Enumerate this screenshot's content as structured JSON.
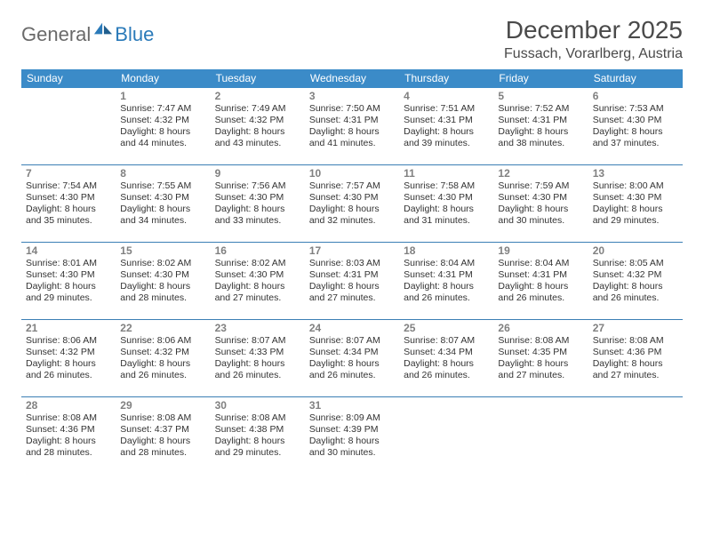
{
  "brand": {
    "part1": "General",
    "part2": "Blue"
  },
  "title": "December 2025",
  "location": "Fussach, Vorarlberg, Austria",
  "colors": {
    "header_bg": "#3b8bc8",
    "header_text": "#ffffff",
    "row_border": "#3b7fb5",
    "date_num": "#808080",
    "body_text": "#333333",
    "logo_gray": "#6a6a6a",
    "logo_blue": "#2a7ab9",
    "page_bg": "#ffffff"
  },
  "typography": {
    "title_fontsize": 28,
    "location_fontsize": 16,
    "dayhead_fontsize": 12,
    "datenum_fontsize": 12,
    "info_fontsize": 10.5
  },
  "day_headers": [
    "Sunday",
    "Monday",
    "Tuesday",
    "Wednesday",
    "Thursday",
    "Friday",
    "Saturday"
  ],
  "weeks": [
    [
      null,
      {
        "date": "1",
        "sunrise": "Sunrise: 7:47 AM",
        "sunset": "Sunset: 4:32 PM",
        "daylight": "Daylight: 8 hours and 44 minutes."
      },
      {
        "date": "2",
        "sunrise": "Sunrise: 7:49 AM",
        "sunset": "Sunset: 4:32 PM",
        "daylight": "Daylight: 8 hours and 43 minutes."
      },
      {
        "date": "3",
        "sunrise": "Sunrise: 7:50 AM",
        "sunset": "Sunset: 4:31 PM",
        "daylight": "Daylight: 8 hours and 41 minutes."
      },
      {
        "date": "4",
        "sunrise": "Sunrise: 7:51 AM",
        "sunset": "Sunset: 4:31 PM",
        "daylight": "Daylight: 8 hours and 39 minutes."
      },
      {
        "date": "5",
        "sunrise": "Sunrise: 7:52 AM",
        "sunset": "Sunset: 4:31 PM",
        "daylight": "Daylight: 8 hours and 38 minutes."
      },
      {
        "date": "6",
        "sunrise": "Sunrise: 7:53 AM",
        "sunset": "Sunset: 4:30 PM",
        "daylight": "Daylight: 8 hours and 37 minutes."
      }
    ],
    [
      {
        "date": "7",
        "sunrise": "Sunrise: 7:54 AM",
        "sunset": "Sunset: 4:30 PM",
        "daylight": "Daylight: 8 hours and 35 minutes."
      },
      {
        "date": "8",
        "sunrise": "Sunrise: 7:55 AM",
        "sunset": "Sunset: 4:30 PM",
        "daylight": "Daylight: 8 hours and 34 minutes."
      },
      {
        "date": "9",
        "sunrise": "Sunrise: 7:56 AM",
        "sunset": "Sunset: 4:30 PM",
        "daylight": "Daylight: 8 hours and 33 minutes."
      },
      {
        "date": "10",
        "sunrise": "Sunrise: 7:57 AM",
        "sunset": "Sunset: 4:30 PM",
        "daylight": "Daylight: 8 hours and 32 minutes."
      },
      {
        "date": "11",
        "sunrise": "Sunrise: 7:58 AM",
        "sunset": "Sunset: 4:30 PM",
        "daylight": "Daylight: 8 hours and 31 minutes."
      },
      {
        "date": "12",
        "sunrise": "Sunrise: 7:59 AM",
        "sunset": "Sunset: 4:30 PM",
        "daylight": "Daylight: 8 hours and 30 minutes."
      },
      {
        "date": "13",
        "sunrise": "Sunrise: 8:00 AM",
        "sunset": "Sunset: 4:30 PM",
        "daylight": "Daylight: 8 hours and 29 minutes."
      }
    ],
    [
      {
        "date": "14",
        "sunrise": "Sunrise: 8:01 AM",
        "sunset": "Sunset: 4:30 PM",
        "daylight": "Daylight: 8 hours and 29 minutes."
      },
      {
        "date": "15",
        "sunrise": "Sunrise: 8:02 AM",
        "sunset": "Sunset: 4:30 PM",
        "daylight": "Daylight: 8 hours and 28 minutes."
      },
      {
        "date": "16",
        "sunrise": "Sunrise: 8:02 AM",
        "sunset": "Sunset: 4:30 PM",
        "daylight": "Daylight: 8 hours and 27 minutes."
      },
      {
        "date": "17",
        "sunrise": "Sunrise: 8:03 AM",
        "sunset": "Sunset: 4:31 PM",
        "daylight": "Daylight: 8 hours and 27 minutes."
      },
      {
        "date": "18",
        "sunrise": "Sunrise: 8:04 AM",
        "sunset": "Sunset: 4:31 PM",
        "daylight": "Daylight: 8 hours and 26 minutes."
      },
      {
        "date": "19",
        "sunrise": "Sunrise: 8:04 AM",
        "sunset": "Sunset: 4:31 PM",
        "daylight": "Daylight: 8 hours and 26 minutes."
      },
      {
        "date": "20",
        "sunrise": "Sunrise: 8:05 AM",
        "sunset": "Sunset: 4:32 PM",
        "daylight": "Daylight: 8 hours and 26 minutes."
      }
    ],
    [
      {
        "date": "21",
        "sunrise": "Sunrise: 8:06 AM",
        "sunset": "Sunset: 4:32 PM",
        "daylight": "Daylight: 8 hours and 26 minutes."
      },
      {
        "date": "22",
        "sunrise": "Sunrise: 8:06 AM",
        "sunset": "Sunset: 4:32 PM",
        "daylight": "Daylight: 8 hours and 26 minutes."
      },
      {
        "date": "23",
        "sunrise": "Sunrise: 8:07 AM",
        "sunset": "Sunset: 4:33 PM",
        "daylight": "Daylight: 8 hours and 26 minutes."
      },
      {
        "date": "24",
        "sunrise": "Sunrise: 8:07 AM",
        "sunset": "Sunset: 4:34 PM",
        "daylight": "Daylight: 8 hours and 26 minutes."
      },
      {
        "date": "25",
        "sunrise": "Sunrise: 8:07 AM",
        "sunset": "Sunset: 4:34 PM",
        "daylight": "Daylight: 8 hours and 26 minutes."
      },
      {
        "date": "26",
        "sunrise": "Sunrise: 8:08 AM",
        "sunset": "Sunset: 4:35 PM",
        "daylight": "Daylight: 8 hours and 27 minutes."
      },
      {
        "date": "27",
        "sunrise": "Sunrise: 8:08 AM",
        "sunset": "Sunset: 4:36 PM",
        "daylight": "Daylight: 8 hours and 27 minutes."
      }
    ],
    [
      {
        "date": "28",
        "sunrise": "Sunrise: 8:08 AM",
        "sunset": "Sunset: 4:36 PM",
        "daylight": "Daylight: 8 hours and 28 minutes."
      },
      {
        "date": "29",
        "sunrise": "Sunrise: 8:08 AM",
        "sunset": "Sunset: 4:37 PM",
        "daylight": "Daylight: 8 hours and 28 minutes."
      },
      {
        "date": "30",
        "sunrise": "Sunrise: 8:08 AM",
        "sunset": "Sunset: 4:38 PM",
        "daylight": "Daylight: 8 hours and 29 minutes."
      },
      {
        "date": "31",
        "sunrise": "Sunrise: 8:09 AM",
        "sunset": "Sunset: 4:39 PM",
        "daylight": "Daylight: 8 hours and 30 minutes."
      },
      null,
      null,
      null
    ]
  ]
}
